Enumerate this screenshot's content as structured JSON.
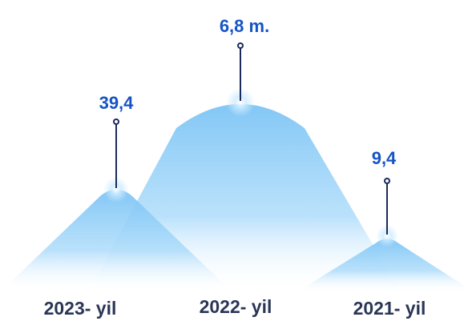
{
  "peaks": [
    {
      "value": "39,4",
      "label": "2023- yil"
    },
    {
      "value": "6,8 m.",
      "label": "2022- yil"
    },
    {
      "value": "9,4",
      "label": "2021- yil"
    }
  ]
}
